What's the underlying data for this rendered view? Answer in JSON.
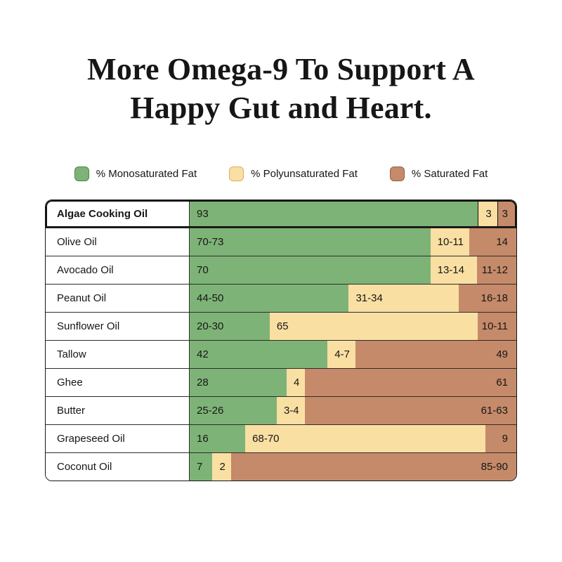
{
  "title": {
    "line1": "More Omega-9 To Support A",
    "line2": "Happy Gut and Heart."
  },
  "legend": {
    "items": [
      {
        "label": "% Monosaturated Fat",
        "color_key": "green"
      },
      {
        "label": "% Polyunsaturated Fat",
        "color_key": "yellow"
      },
      {
        "label": "% Saturated Fat",
        "color_key": "brown"
      }
    ]
  },
  "colors": {
    "green": "#7eb377",
    "green_border": "#4f8449",
    "yellow": "#fadfa3",
    "yellow_border": "#d8ae62",
    "brown": "#c58a69",
    "brown_border": "#96603f",
    "text": "#161616",
    "table_border": "#161616"
  },
  "chart_data": {
    "type": "bar",
    "orientation": "horizontal-stacked",
    "unit": "%",
    "highlighted_category": "Algae Cooking Oil",
    "categories": [
      "Algae Cooking Oil",
      "Olive Oil",
      "Avocado Oil",
      "Peanut Oil",
      "Sunflower Oil",
      "Tallow",
      "Ghee",
      "Butter",
      "Grapeseed Oil",
      "Coconut Oil"
    ],
    "series": [
      {
        "name": "% Monosaturated Fat",
        "color_key": "green",
        "values": [
          "93",
          "70-73",
          "70",
          "44-50",
          "20-30",
          "42",
          "28",
          "25-26",
          "16",
          "7"
        ]
      },
      {
        "name": "% Polyunsaturated Fat",
        "color_key": "yellow",
        "values": [
          "3",
          "10-11",
          "13-14",
          "31-34",
          "65",
          "4-7",
          "4",
          "3-4",
          "68-70",
          "2"
        ]
      },
      {
        "name": "% Saturated Fat",
        "color_key": "brown",
        "values": [
          "3",
          "14",
          "11-12",
          "16-18",
          "10-11",
          "49",
          "61",
          "61-63",
          "9",
          "85-90"
        ]
      }
    ],
    "legend_position": "top",
    "grid": false
  }
}
